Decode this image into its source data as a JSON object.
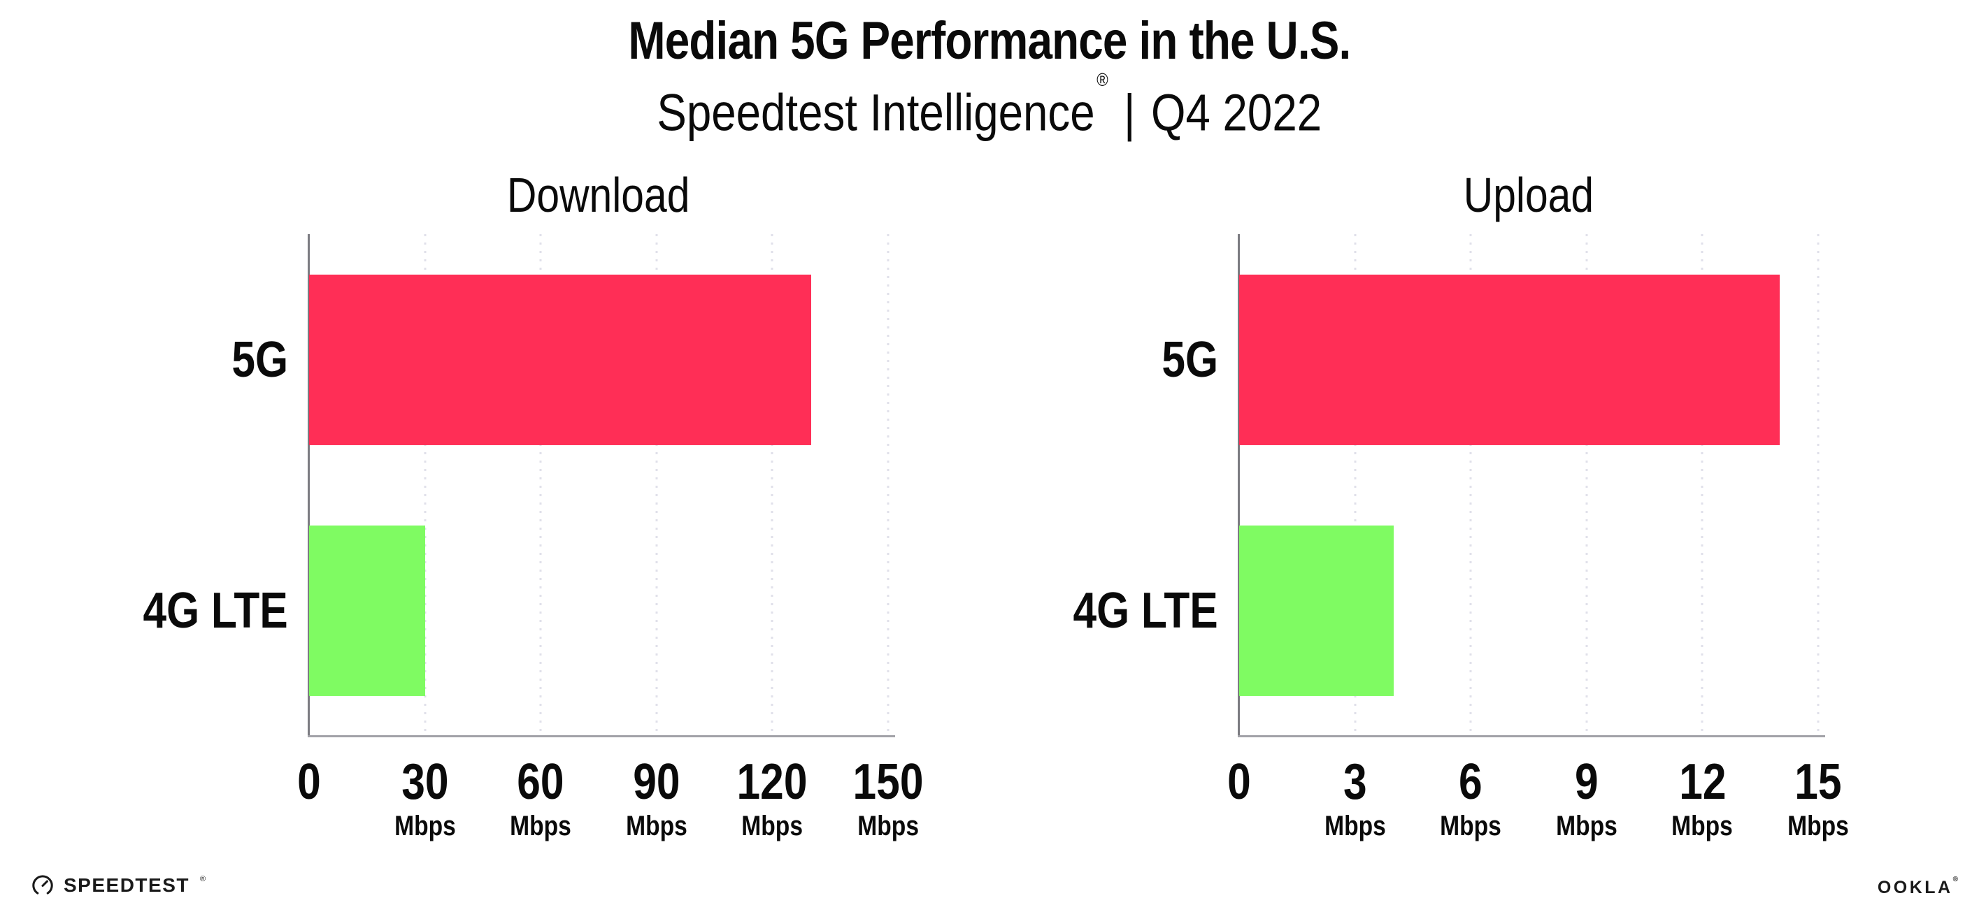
{
  "title": "Median 5G Performance in the U.S.",
  "subtitle": {
    "brand": "Speedtest Intelligence",
    "registered": "®",
    "separator": "|",
    "period": "Q4 2022"
  },
  "colors": {
    "bar_5g": "#FF2E56",
    "bar_4g_lte": "#7FFB62",
    "gridline": "#E0E0EA",
    "x_axis": "#A2A2A8",
    "y_spine": "#7C7C82",
    "text": "#0A0A0A",
    "logo_text": "#1A1A1A"
  },
  "chart_data": [
    {
      "type": "bar",
      "orientation": "horizontal",
      "title": "Download",
      "categories": [
        "5G",
        "4G LTE"
      ],
      "values": [
        130,
        30
      ],
      "unit": "Mbps",
      "xlim": [
        0,
        150
      ],
      "xticks": [
        0,
        30,
        60,
        90,
        120,
        150
      ],
      "tick_unit": "Mbps",
      "grid": "vertical-dotted",
      "legend": "none",
      "bar_colors": [
        "#FF2E56",
        "#7FFB62"
      ]
    },
    {
      "type": "bar",
      "orientation": "horizontal",
      "title": "Upload",
      "categories": [
        "5G",
        "4G LTE"
      ],
      "values": [
        14,
        4
      ],
      "unit": "Mbps",
      "xlim": [
        0,
        15
      ],
      "xticks": [
        0,
        3,
        6,
        9,
        12,
        15
      ],
      "tick_unit": "Mbps",
      "grid": "vertical-dotted",
      "legend": "none",
      "bar_colors": [
        "#FF2E56",
        "#7FFB62"
      ]
    }
  ],
  "footer": {
    "speedtest": "SPEEDTEST",
    "ookla": "OOKLA",
    "registered": "®"
  }
}
